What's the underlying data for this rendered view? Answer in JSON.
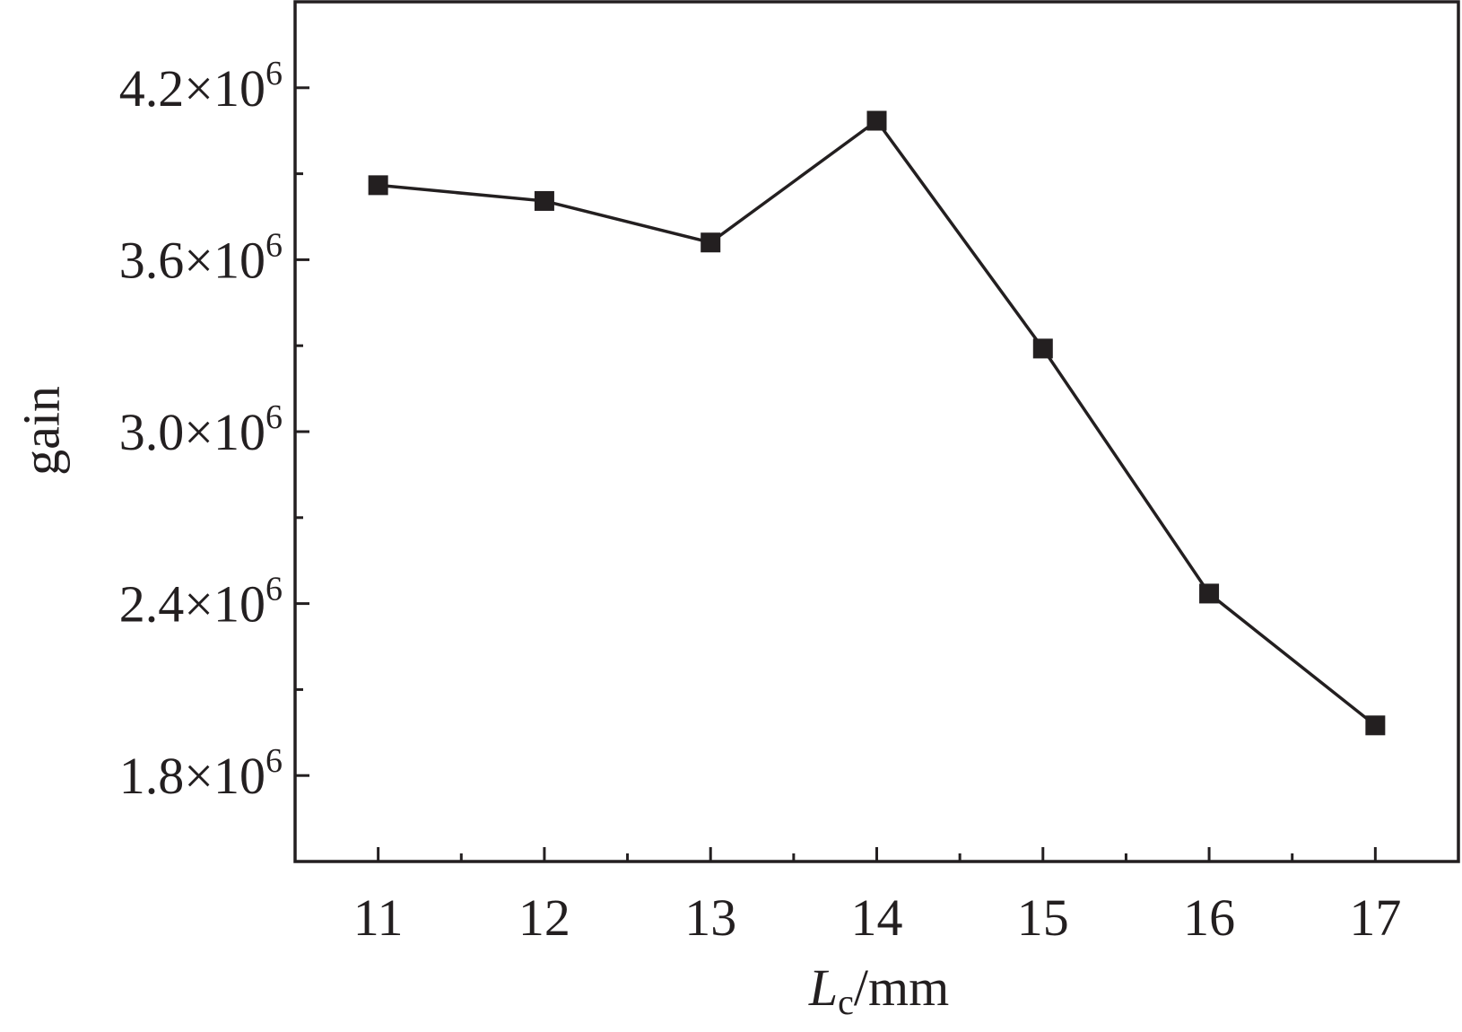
{
  "chart_data": {
    "type": "line",
    "title": "",
    "xlabel": {
      "main": "L",
      "sub": "c",
      "unit": "/mm"
    },
    "ylabel": "gain",
    "xlim": [
      10.5,
      17.5
    ],
    "ylim": [
      1500000.0,
      4500000.0
    ],
    "x_major_ticks": [
      11,
      12,
      13,
      14,
      15,
      16,
      17
    ],
    "x_minor_ticks": [
      11.5,
      12.5,
      13.5,
      14.5,
      15.5,
      16.5
    ],
    "y_major_ticks": [
      {
        "value": 1800000.0,
        "mantissa": "1.8",
        "times": "×10",
        "exp": "6"
      },
      {
        "value": 2400000.0,
        "mantissa": "2.4",
        "times": "×10",
        "exp": "6"
      },
      {
        "value": 3000000.0,
        "mantissa": "3.0",
        "times": "×10",
        "exp": "6"
      },
      {
        "value": 3600000.0,
        "mantissa": "3.6",
        "times": "×10",
        "exp": "6"
      },
      {
        "value": 4200000.0,
        "mantissa": "4.2",
        "times": "×10",
        "exp": "6"
      }
    ],
    "y_minor_ticks": [
      2100000.0,
      2700000.0,
      3300000.0,
      3900000.0
    ],
    "grid": false,
    "legend": "none",
    "marker": "square",
    "color": "#231f20",
    "series": [
      {
        "x": [
          11,
          12,
          13,
          14,
          15,
          16,
          17
        ],
        "y": [
          3860000.0,
          3805000.0,
          3660000.0,
          4085000.0,
          3290000.0,
          2435000.0,
          1975000.0
        ]
      }
    ]
  }
}
